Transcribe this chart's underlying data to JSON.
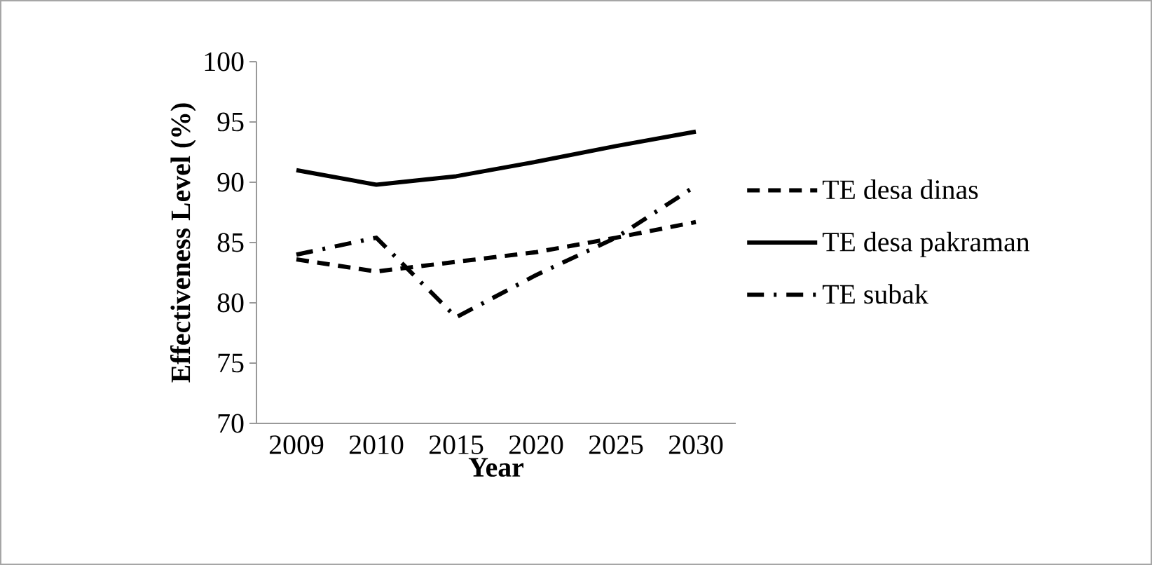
{
  "chart_data": {
    "type": "line",
    "xlabel": "Year",
    "ylabel": "Effectiveness Level  (%)",
    "categories": [
      "2009",
      "2010",
      "2015",
      "2020",
      "2025",
      "2030"
    ],
    "series": [
      {
        "name": "TE desa dinas",
        "color": "#000000",
        "line_style": "dashed",
        "values": [
          83.6,
          82.6,
          83.4,
          84.2,
          85.4,
          86.7
        ]
      },
      {
        "name": "TE desa pakraman",
        "color": "#000000",
        "line_style": "solid",
        "values": [
          91.0,
          89.8,
          90.5,
          91.7,
          93.0,
          94.2
        ]
      },
      {
        "name": "TE subak",
        "color": "#000000",
        "line_style": "dashdot",
        "values": [
          84.0,
          85.4,
          78.8,
          82.3,
          85.4,
          89.7
        ]
      }
    ],
    "ylim": [
      70,
      100
    ],
    "yticks": [
      70,
      75,
      80,
      85,
      90,
      95,
      100
    ],
    "legend": "right",
    "grid": false,
    "marker": "none"
  }
}
